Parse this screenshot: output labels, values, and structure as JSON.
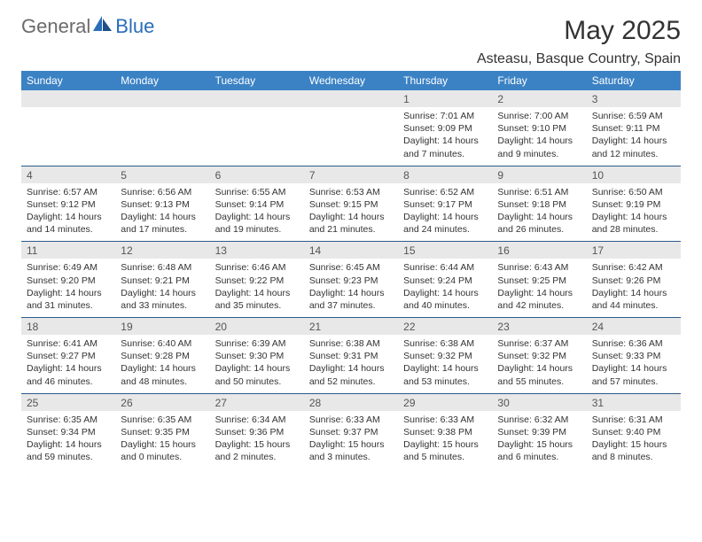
{
  "brand": {
    "part1": "General",
    "part2": "Blue"
  },
  "title": "May 2025",
  "location": "Asteasu, Basque Country, Spain",
  "colors": {
    "header_bg": "#3b82c4",
    "header_text": "#ffffff",
    "daynum_bg": "#e8e8e8",
    "daynum_text": "#555555",
    "detail_text": "#333333",
    "rule": "#2a5a8a",
    "logo_gray": "#6b6b6b",
    "logo_blue": "#2a6db8"
  },
  "weekdays": [
    "Sunday",
    "Monday",
    "Tuesday",
    "Wednesday",
    "Thursday",
    "Friday",
    "Saturday"
  ],
  "weeks": [
    {
      "nums": [
        "",
        "",
        "",
        "",
        "1",
        "2",
        "3"
      ],
      "details": [
        "",
        "",
        "",
        "",
        "Sunrise: 7:01 AM\nSunset: 9:09 PM\nDaylight: 14 hours and 7 minutes.",
        "Sunrise: 7:00 AM\nSunset: 9:10 PM\nDaylight: 14 hours and 9 minutes.",
        "Sunrise: 6:59 AM\nSunset: 9:11 PM\nDaylight: 14 hours and 12 minutes."
      ]
    },
    {
      "nums": [
        "4",
        "5",
        "6",
        "7",
        "8",
        "9",
        "10"
      ],
      "details": [
        "Sunrise: 6:57 AM\nSunset: 9:12 PM\nDaylight: 14 hours and 14 minutes.",
        "Sunrise: 6:56 AM\nSunset: 9:13 PM\nDaylight: 14 hours and 17 minutes.",
        "Sunrise: 6:55 AM\nSunset: 9:14 PM\nDaylight: 14 hours and 19 minutes.",
        "Sunrise: 6:53 AM\nSunset: 9:15 PM\nDaylight: 14 hours and 21 minutes.",
        "Sunrise: 6:52 AM\nSunset: 9:17 PM\nDaylight: 14 hours and 24 minutes.",
        "Sunrise: 6:51 AM\nSunset: 9:18 PM\nDaylight: 14 hours and 26 minutes.",
        "Sunrise: 6:50 AM\nSunset: 9:19 PM\nDaylight: 14 hours and 28 minutes."
      ]
    },
    {
      "nums": [
        "11",
        "12",
        "13",
        "14",
        "15",
        "16",
        "17"
      ],
      "details": [
        "Sunrise: 6:49 AM\nSunset: 9:20 PM\nDaylight: 14 hours and 31 minutes.",
        "Sunrise: 6:48 AM\nSunset: 9:21 PM\nDaylight: 14 hours and 33 minutes.",
        "Sunrise: 6:46 AM\nSunset: 9:22 PM\nDaylight: 14 hours and 35 minutes.",
        "Sunrise: 6:45 AM\nSunset: 9:23 PM\nDaylight: 14 hours and 37 minutes.",
        "Sunrise: 6:44 AM\nSunset: 9:24 PM\nDaylight: 14 hours and 40 minutes.",
        "Sunrise: 6:43 AM\nSunset: 9:25 PM\nDaylight: 14 hours and 42 minutes.",
        "Sunrise: 6:42 AM\nSunset: 9:26 PM\nDaylight: 14 hours and 44 minutes."
      ]
    },
    {
      "nums": [
        "18",
        "19",
        "20",
        "21",
        "22",
        "23",
        "24"
      ],
      "details": [
        "Sunrise: 6:41 AM\nSunset: 9:27 PM\nDaylight: 14 hours and 46 minutes.",
        "Sunrise: 6:40 AM\nSunset: 9:28 PM\nDaylight: 14 hours and 48 minutes.",
        "Sunrise: 6:39 AM\nSunset: 9:30 PM\nDaylight: 14 hours and 50 minutes.",
        "Sunrise: 6:38 AM\nSunset: 9:31 PM\nDaylight: 14 hours and 52 minutes.",
        "Sunrise: 6:38 AM\nSunset: 9:32 PM\nDaylight: 14 hours and 53 minutes.",
        "Sunrise: 6:37 AM\nSunset: 9:32 PM\nDaylight: 14 hours and 55 minutes.",
        "Sunrise: 6:36 AM\nSunset: 9:33 PM\nDaylight: 14 hours and 57 minutes."
      ]
    },
    {
      "nums": [
        "25",
        "26",
        "27",
        "28",
        "29",
        "30",
        "31"
      ],
      "details": [
        "Sunrise: 6:35 AM\nSunset: 9:34 PM\nDaylight: 14 hours and 59 minutes.",
        "Sunrise: 6:35 AM\nSunset: 9:35 PM\nDaylight: 15 hours and 0 minutes.",
        "Sunrise: 6:34 AM\nSunset: 9:36 PM\nDaylight: 15 hours and 2 minutes.",
        "Sunrise: 6:33 AM\nSunset: 9:37 PM\nDaylight: 15 hours and 3 minutes.",
        "Sunrise: 6:33 AM\nSunset: 9:38 PM\nDaylight: 15 hours and 5 minutes.",
        "Sunrise: 6:32 AM\nSunset: 9:39 PM\nDaylight: 15 hours and 6 minutes.",
        "Sunrise: 6:31 AM\nSunset: 9:40 PM\nDaylight: 15 hours and 8 minutes."
      ]
    }
  ]
}
